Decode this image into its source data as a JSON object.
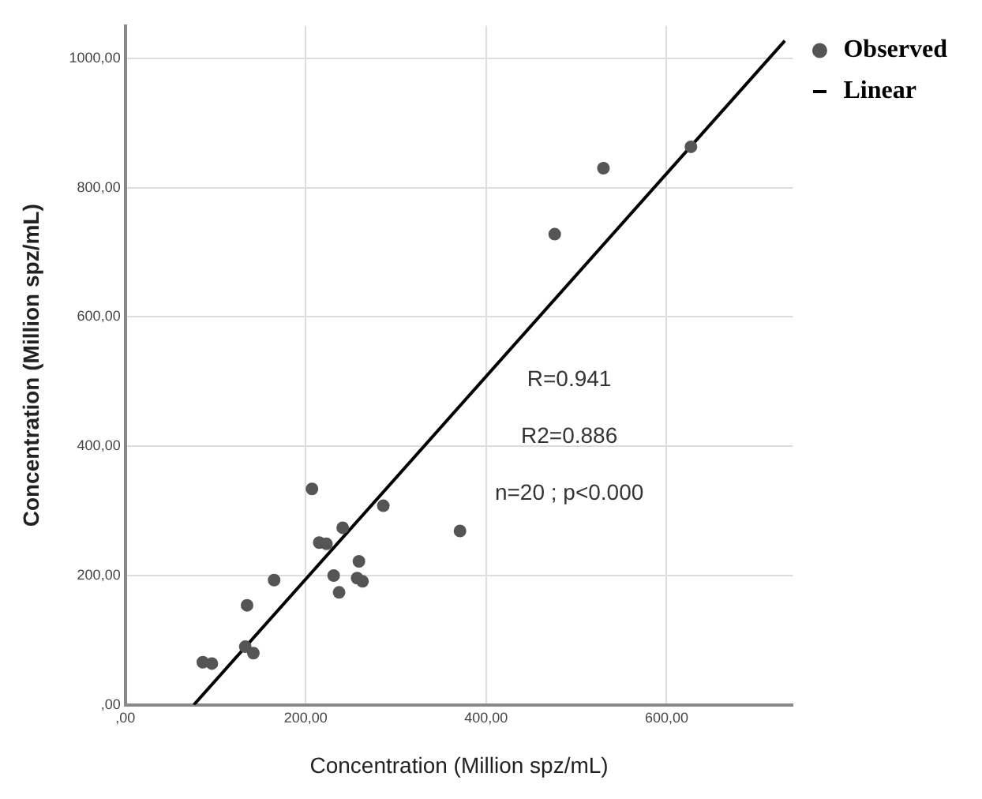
{
  "chart_data": {
    "type": "scatter",
    "xlabel": "Concentration (Million spz/mL)",
    "ylabel": "Concentration (Million spz/mL)",
    "xlim": [
      0,
      740
    ],
    "ylim": [
      0,
      1050
    ],
    "xticks": [
      {
        "value": 0,
        "label": ",00"
      },
      {
        "value": 200,
        "label": "200,00"
      },
      {
        "value": 400,
        "label": "400,00"
      },
      {
        "value": 600,
        "label": "600,00"
      }
    ],
    "yticks": [
      {
        "value": 0,
        "label": ",00"
      },
      {
        "value": 200,
        "label": "200,00"
      },
      {
        "value": 400,
        "label": "400,00"
      },
      {
        "value": 600,
        "label": "600,00"
      },
      {
        "value": 800,
        "label": "800,00"
      },
      {
        "value": 1000,
        "label": "1000,00"
      }
    ],
    "grid": true,
    "legend": "top right",
    "series": [
      {
        "name": "Observed",
        "marker": "circle",
        "color": "#555555",
        "x": [
          86,
          96,
          133,
          142,
          135,
          165,
          207,
          215,
          223,
          241,
          231,
          237,
          259,
          257,
          263,
          286,
          371,
          476,
          530,
          627
        ],
        "values": [
          66,
          64,
          90,
          80,
          154,
          193,
          334,
          251,
          249,
          274,
          200,
          174,
          222,
          196,
          191,
          308,
          269,
          728,
          830,
          863
        ]
      },
      {
        "name": "Linear",
        "type": "line",
        "color": "#000000",
        "line_style": "solid",
        "x": [
          76,
          731
        ],
        "values": [
          0,
          1027
        ]
      }
    ],
    "annotations": [
      "R=0.941",
      "R2=0.886",
      "n=20 ; p<0.000"
    ]
  }
}
